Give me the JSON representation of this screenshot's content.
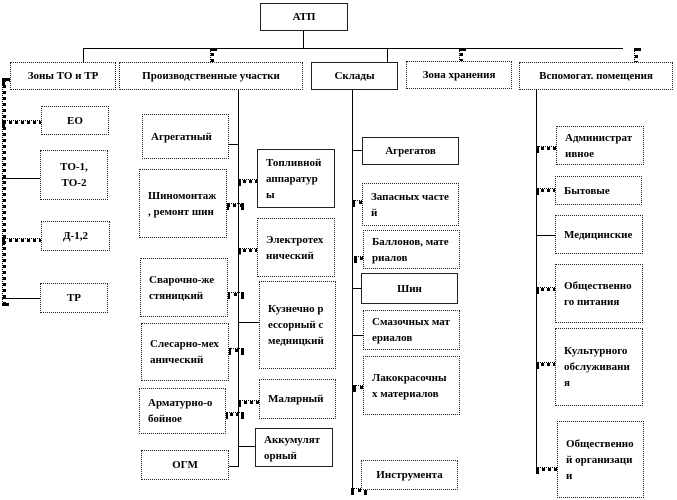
{
  "root": "АТП",
  "categories": [
    {
      "label": "Зоны ТО и ТР",
      "items": [
        "ЕО",
        "ТО-1, ТО-2",
        "Д-1,2",
        "ТР"
      ]
    },
    {
      "label": "Производственные участки",
      "left_items": [
        "Агрегатный",
        "Шиномонтаж , ремонт шин",
        "Сварочно-жестяницкий",
        "Слесарно-механический",
        "Арматурно-обойное",
        "ОГМ"
      ],
      "right_items": [
        "Топливной аппаратуры",
        "Электротехнический",
        "Кузнечно рессорный с медницкий",
        "Малярный",
        "Аккумуляторный"
      ]
    },
    {
      "label": "Склады",
      "items": [
        "Агрегатов",
        "Запасных частей",
        "Баллонов, материалов",
        "Шин",
        "Смазочных материалов",
        "Лакокрасочных материалов",
        "Инструмента"
      ]
    },
    {
      "label": "Зона хранения"
    },
    {
      "label": "Вспомогат. помещения",
      "items": [
        "Административное",
        "Бытовые",
        "Медицинские",
        "Общественного питания",
        "Культурного обслуживания",
        "Общественной организации"
      ]
    }
  ]
}
